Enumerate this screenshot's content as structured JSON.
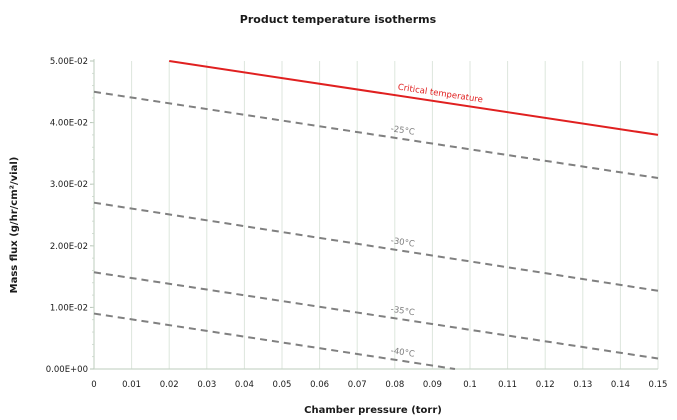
{
  "chart_data": {
    "type": "line",
    "title": "Product temperature isotherms",
    "xlabel": "Chamber pressure (torr)",
    "ylabel": "Mass flux (g/hr/cm²/vial)",
    "xlim": [
      0,
      0.15
    ],
    "ylim": [
      0,
      0.05
    ],
    "x_ticks": [
      "0",
      "0.01",
      "0.02",
      "0.03",
      "0.04",
      "0.05",
      "0.06",
      "0.07",
      "0.08",
      "0.09",
      "0.1",
      "0.11",
      "0.12",
      "0.13",
      "0.14",
      "0.15"
    ],
    "y_ticks": [
      "0.00E+00",
      "1.00E-02",
      "2.00E-02",
      "3.00E-02",
      "4.00E-02",
      "5.00E-02"
    ],
    "grid": "vertical",
    "series": [
      {
        "name": "Critical temperature",
        "style": "solid",
        "color": "#e02020",
        "points": [
          [
            0.02,
            0.05
          ],
          [
            0.15,
            0.038
          ]
        ],
        "label_at": 0.092
      },
      {
        "name": "-25°C",
        "style": "dashed",
        "color": "#808080",
        "points": [
          [
            0,
            0.045
          ],
          [
            0.15,
            0.031
          ]
        ],
        "label_at": 0.082
      },
      {
        "name": "-30°C",
        "style": "dashed",
        "color": "#808080",
        "points": [
          [
            0,
            0.027
          ],
          [
            0.15,
            0.0127
          ]
        ],
        "label_at": 0.082
      },
      {
        "name": "-35°C",
        "style": "dashed",
        "color": "#808080",
        "points": [
          [
            0,
            0.0157
          ],
          [
            0.15,
            0.0017
          ]
        ],
        "label_at": 0.082
      },
      {
        "name": "-40°C",
        "style": "dashed",
        "color": "#808080",
        "points": [
          [
            0,
            0.009
          ],
          [
            0.096,
            0.0
          ]
        ],
        "label_at": 0.082
      }
    ]
  }
}
